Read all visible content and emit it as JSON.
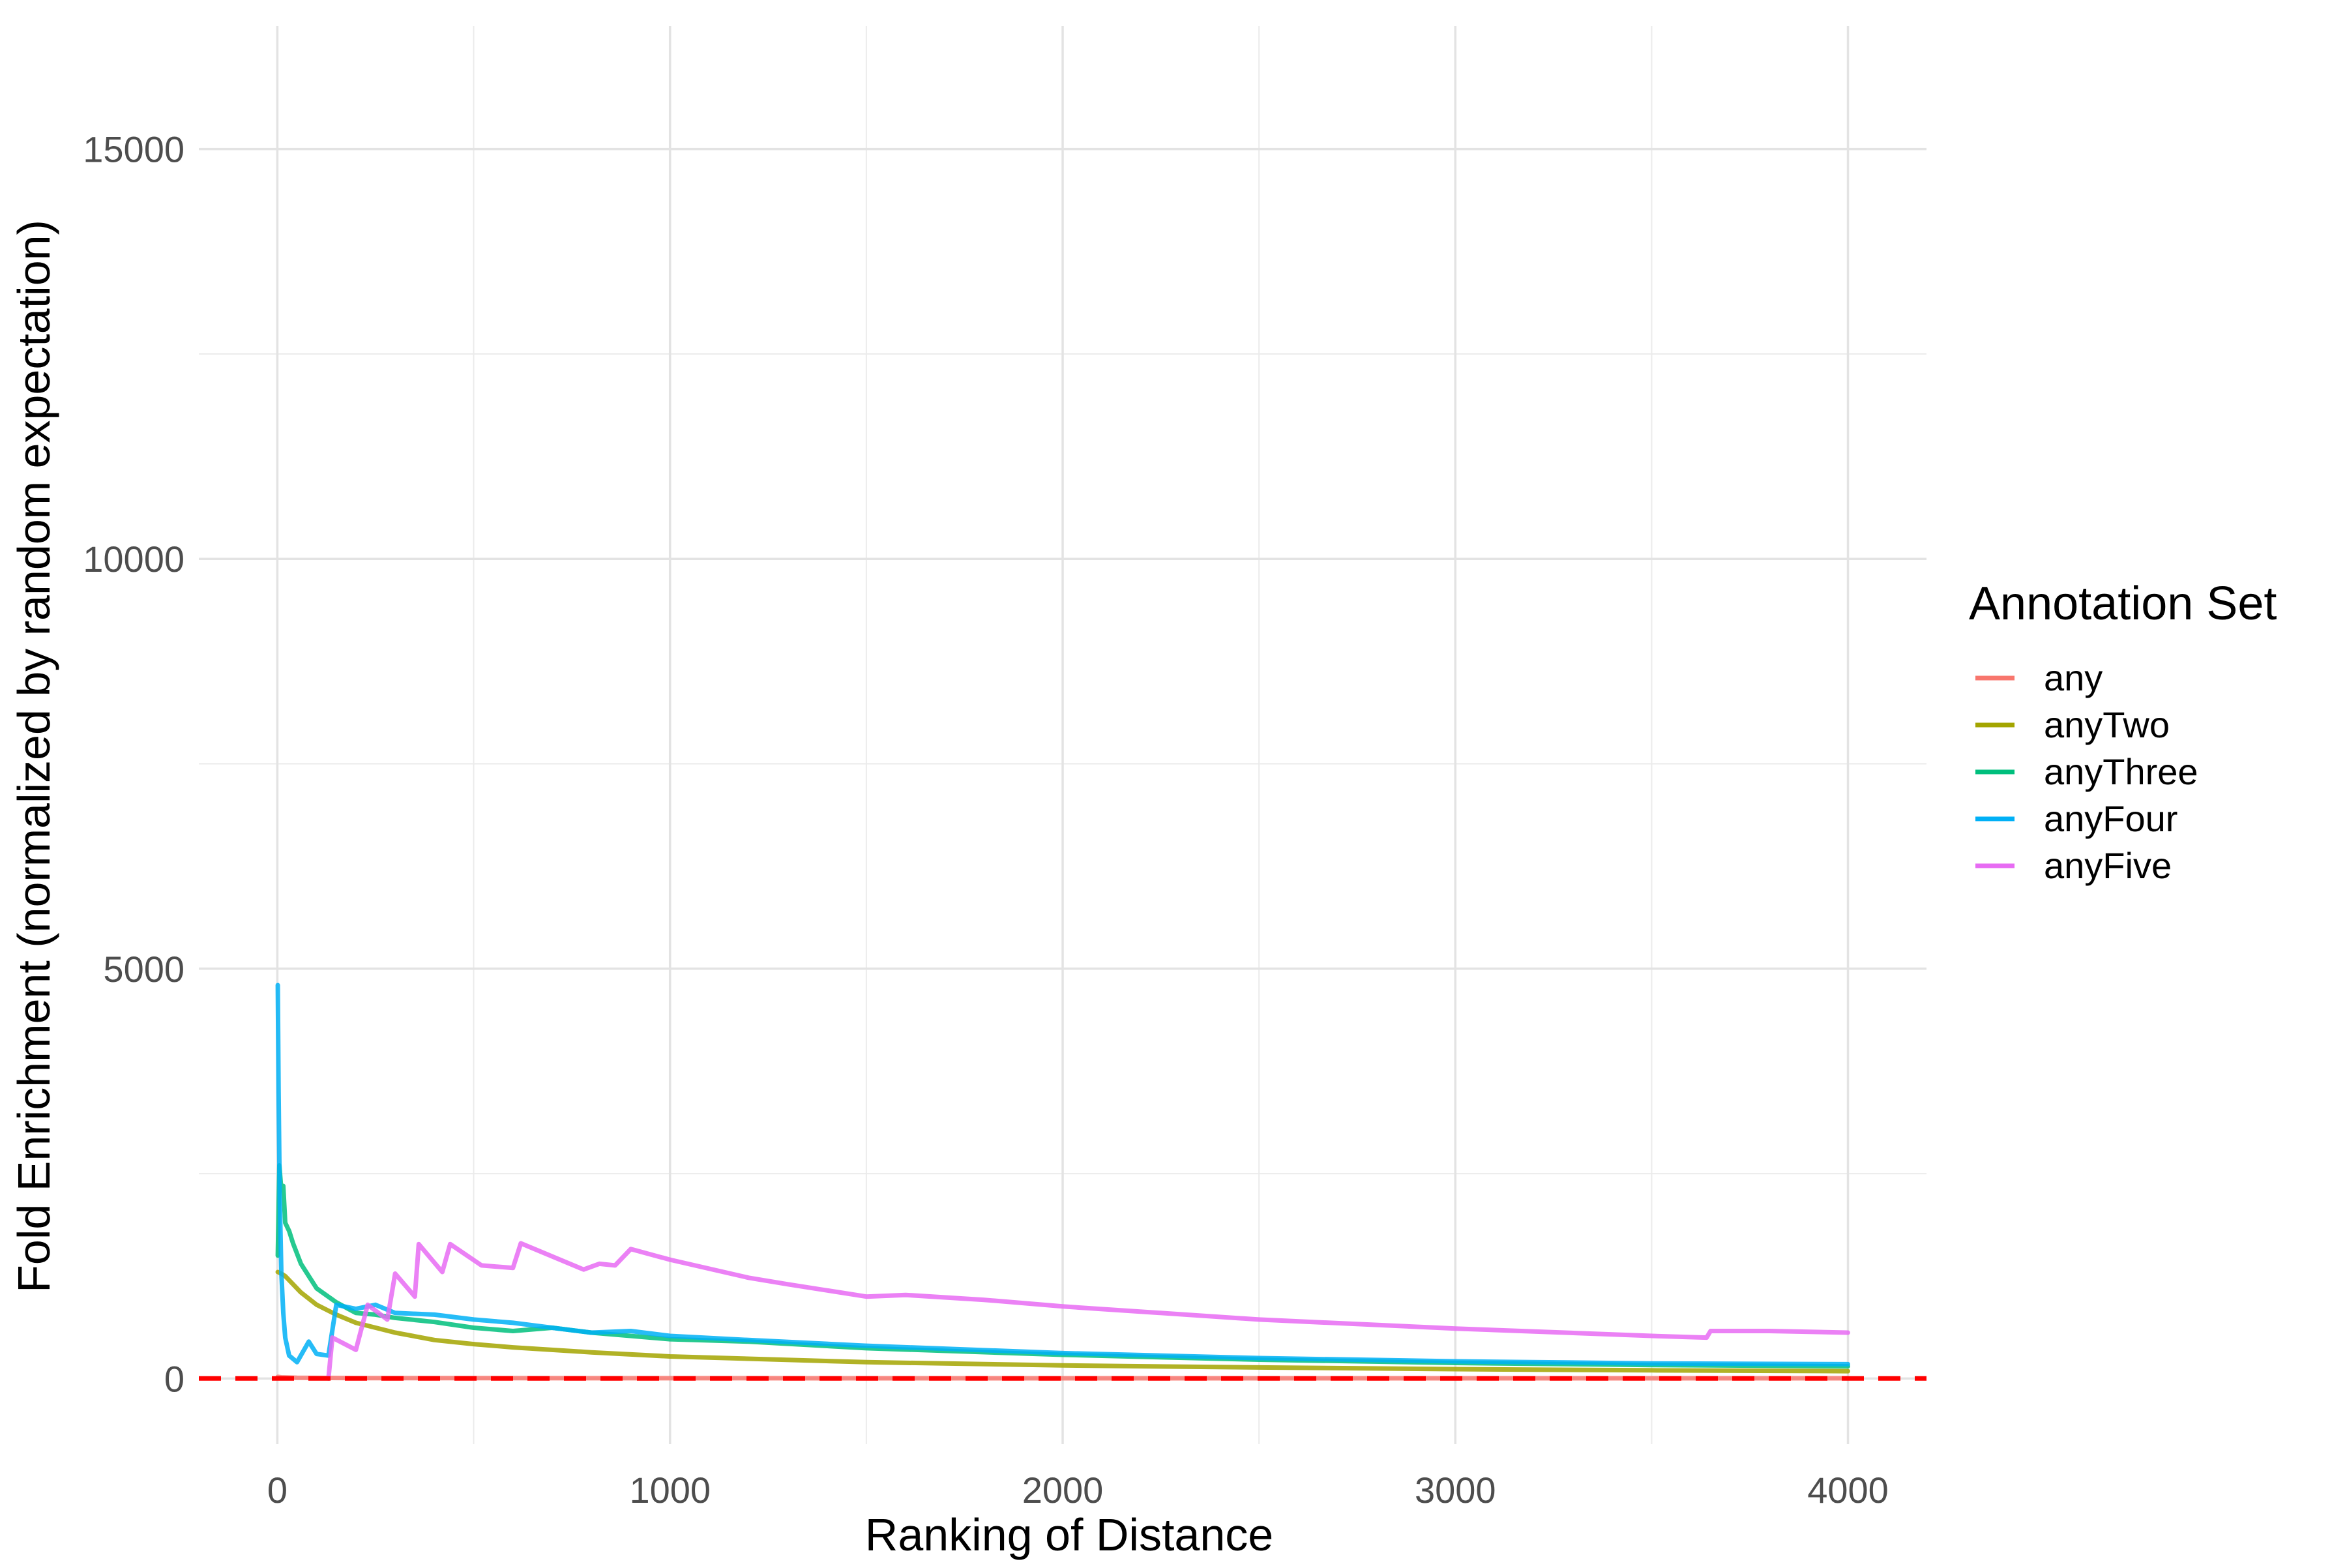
{
  "chart_data": {
    "type": "line",
    "xlabel": "Ranking of Distance",
    "ylabel": "Fold Enrichment (normalized by random expectation)",
    "xlim": [
      -200,
      4200
    ],
    "ylim": [
      -800,
      16500
    ],
    "x_ticks": [
      0,
      1000,
      2000,
      3000,
      4000
    ],
    "x_tick_labels": [
      "0",
      "1000",
      "2000",
      "3000",
      "4000"
    ],
    "y_ticks": [
      0,
      5000,
      10000,
      15000
    ],
    "y_tick_labels": [
      "0",
      "5000",
      "10000",
      "15000"
    ],
    "grid": true,
    "legend": {
      "title": "Annotation Set",
      "position": "right",
      "entries": [
        "any",
        "anyTwo",
        "anyThree",
        "anyFour",
        "anyFive"
      ]
    },
    "reference_line": {
      "y": 1,
      "style": "dashed",
      "color": "#ff0000"
    },
    "colors": {
      "any": "#F8766D",
      "anyTwo": "#A3A500",
      "anyThree": "#00BF7D",
      "anyFour": "#00B0F6",
      "anyFive": "#E76BF3"
    },
    "series": [
      {
        "name": "any",
        "x": [
          1,
          10,
          50,
          200,
          1000,
          2000,
          3000,
          4000
        ],
        "y": [
          20,
          15,
          10,
          6,
          4,
          3,
          3,
          3
        ]
      },
      {
        "name": "anyTwo",
        "x": [
          1,
          10,
          20,
          40,
          60,
          100,
          150,
          200,
          300,
          400,
          500,
          600,
          800,
          1000,
          1500,
          2000,
          2500,
          3000,
          3500,
          4000
        ],
        "y": [
          1300,
          1280,
          1250,
          1150,
          1050,
          900,
          780,
          680,
          560,
          470,
          420,
          380,
          320,
          270,
          200,
          160,
          135,
          115,
          100,
          90
        ]
      },
      {
        "name": "anyThree",
        "x": [
          1,
          5,
          10,
          15,
          20,
          30,
          40,
          60,
          80,
          100,
          150,
          200,
          250,
          300,
          400,
          500,
          600,
          700,
          800,
          1000,
          1200,
          1500,
          2000,
          2500,
          3000,
          3500,
          4000
        ],
        "y": [
          1500,
          2600,
          2300,
          2350,
          1900,
          1800,
          1650,
          1400,
          1250,
          1100,
          930,
          800,
          780,
          740,
          690,
          620,
          580,
          620,
          560,
          480,
          450,
          370,
          290,
          230,
          190,
          165,
          150
        ]
      },
      {
        "name": "anyFour",
        "x": [
          1,
          3,
          6,
          10,
          15,
          20,
          30,
          50,
          80,
          100,
          130,
          150,
          200,
          250,
          300,
          400,
          500,
          600,
          700,
          800,
          900,
          1000,
          1200,
          1500,
          2000,
          2500,
          3000,
          3500,
          4000
        ],
        "y": [
          4800,
          3500,
          2200,
          1300,
          800,
          500,
          280,
          200,
          450,
          300,
          280,
          900,
          850,
          900,
          800,
          780,
          720,
          680,
          620,
          560,
          580,
          520,
          470,
          400,
          310,
          250,
          210,
          185,
          175
        ]
      },
      {
        "name": "anyFive",
        "x": [
          130,
          140,
          200,
          230,
          280,
          300,
          350,
          360,
          420,
          440,
          520,
          600,
          620,
          780,
          820,
          860,
          900,
          1000,
          1200,
          1300,
          1500,
          1600,
          1800,
          2000,
          2500,
          3000,
          3500,
          3640,
          3650,
          3800,
          4000
        ],
        "y": [
          0,
          500,
          350,
          900,
          720,
          1280,
          1000,
          1640,
          1300,
          1640,
          1380,
          1350,
          1650,
          1330,
          1400,
          1380,
          1580,
          1450,
          1230,
          1150,
          1000,
          1020,
          960,
          880,
          720,
          610,
          520,
          500,
          580,
          580,
          560
        ]
      }
    ]
  }
}
